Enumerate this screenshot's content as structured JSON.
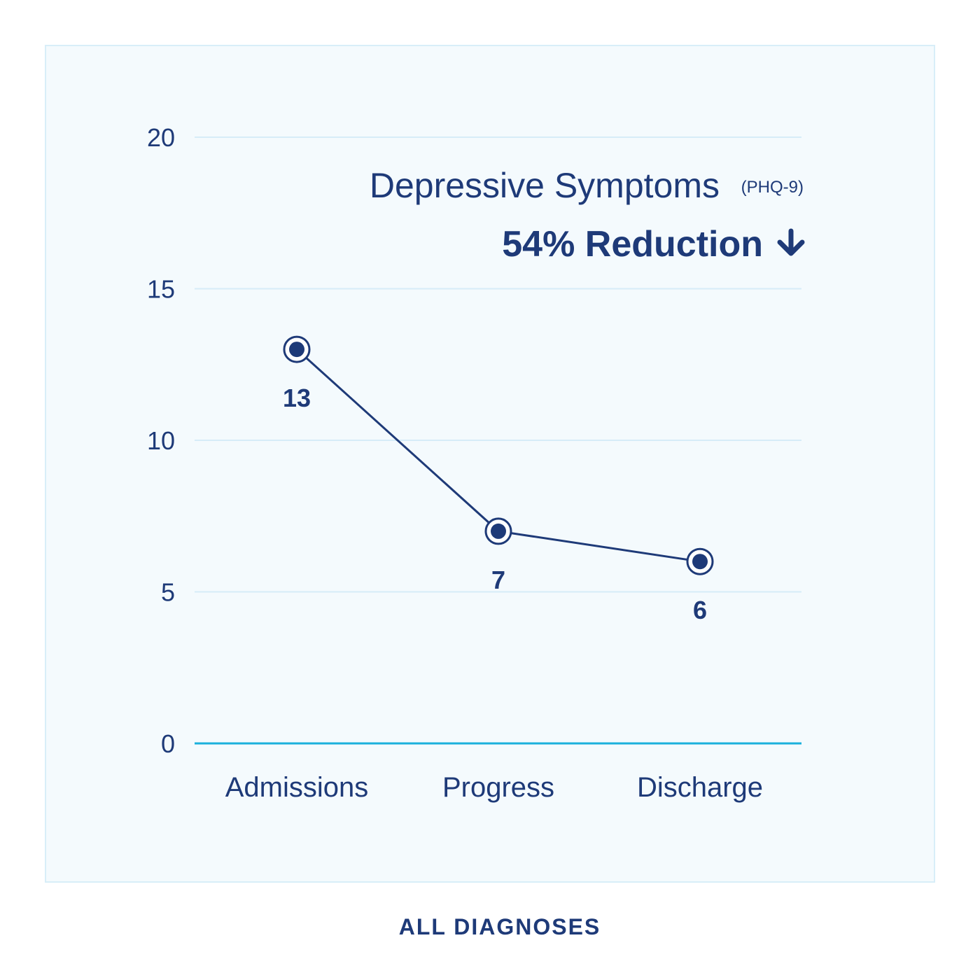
{
  "chart_data": {
    "type": "line",
    "categories": [
      "Admissions",
      "Progress",
      "Discharge"
    ],
    "values": [
      13,
      7,
      6
    ],
    "data_labels": [
      "13",
      "7",
      "6"
    ],
    "title": "Depressive Symptoms",
    "title_suffix": "(PHQ-9)",
    "headline": "54% Reduction",
    "headline_icon": "arrow-down-icon",
    "footer": "ALL DIAGNOSES",
    "yticks": [
      "0",
      "5",
      "10",
      "15",
      "20"
    ],
    "ylim": [
      0,
      20
    ],
    "grid": true,
    "colors": {
      "line": "#1e3a78",
      "grid": "#d6ecf8",
      "baseline": "#1ab0dc",
      "panel": "#f4fafd",
      "panel_border": "#d8eef8",
      "text": "#1e3a78"
    }
  }
}
